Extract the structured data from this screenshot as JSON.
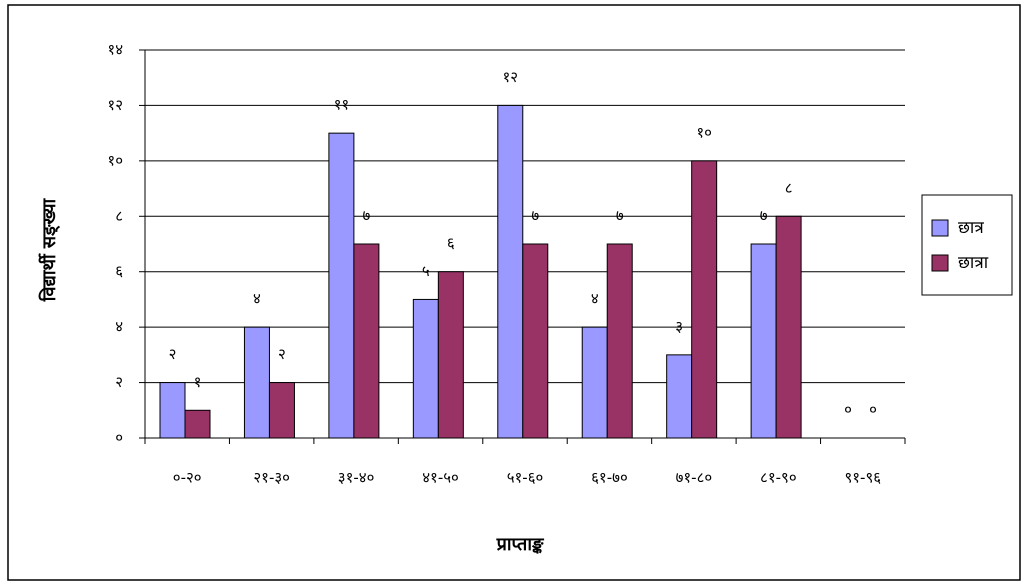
{
  "chart_data": {
    "type": "bar",
    "x_label": "प्राप्ताङ्क",
    "y_label": "विद्यार्थी सङ्ख्या",
    "categories": [
      "०-२०",
      "२१-३०",
      "३१-४०",
      "४१-५०",
      "५१-६०",
      "६१-७०",
      "७१-८०",
      "८१-९०",
      "९१-९६"
    ],
    "series": [
      {
        "name": "छात्र",
        "color": "#9999ff",
        "values": [
          2,
          4,
          11,
          5,
          12,
          4,
          3,
          7,
          0
        ],
        "value_labels": [
          "२",
          "४",
          "११",
          "५",
          "१२",
          "४",
          "३",
          "७",
          "०"
        ]
      },
      {
        "name": "छात्रा",
        "color": "#993366",
        "values": [
          1,
          2,
          7,
          6,
          7,
          7,
          10,
          8,
          0
        ],
        "value_labels": [
          "१",
          "२",
          "७",
          "६",
          "७",
          "७",
          "१०",
          "८",
          "०"
        ]
      }
    ],
    "ylim": [
      0,
      14
    ],
    "yticks": [
      {
        "value": 0,
        "label": "०"
      },
      {
        "value": 2,
        "label": "२"
      },
      {
        "value": 4,
        "label": "४"
      },
      {
        "value": 6,
        "label": "६"
      },
      {
        "value": 8,
        "label": "८"
      },
      {
        "value": 10,
        "label": "१०"
      },
      {
        "value": 12,
        "label": "१२"
      },
      {
        "value": 14,
        "label": "१४"
      }
    ],
    "grid": true,
    "legend": "right"
  }
}
